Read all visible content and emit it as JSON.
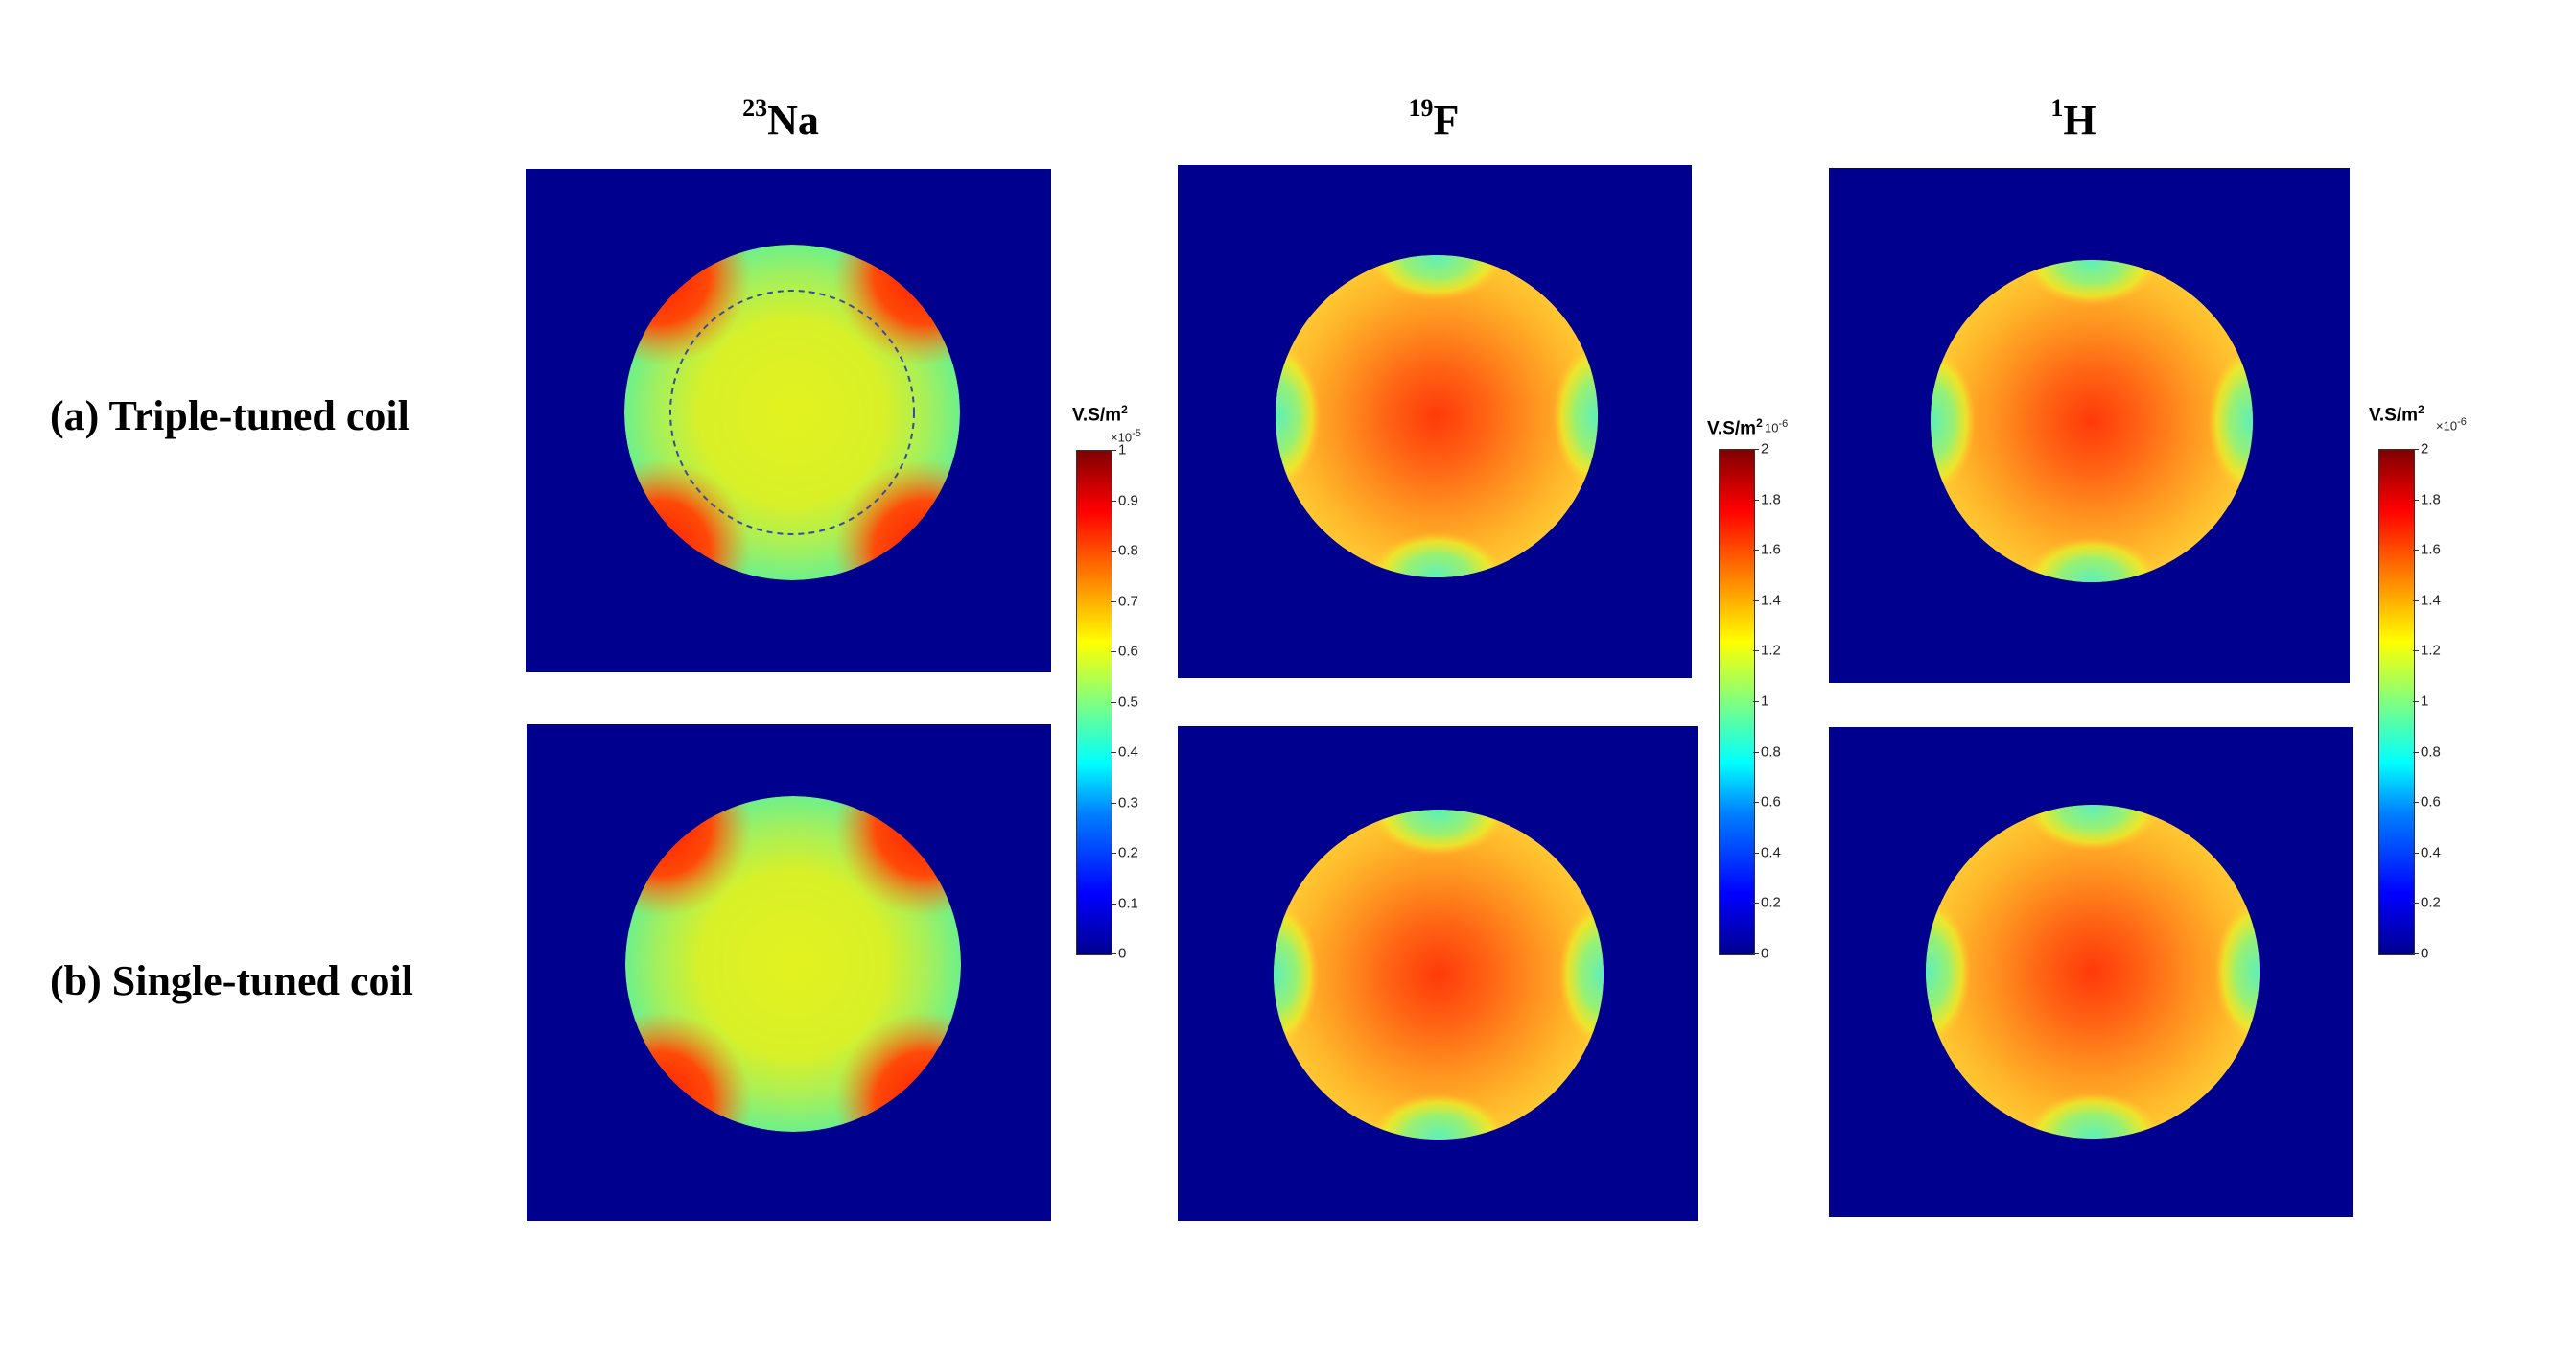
{
  "columns": [
    {
      "sup": "23",
      "label": "Na"
    },
    {
      "sup": "19",
      "label": "F"
    },
    {
      "sup": "1",
      "label": "H"
    }
  ],
  "rows": [
    {
      "label": "(a) Triple-tuned coil"
    },
    {
      "label": "(b) Single-tuned coil"
    }
  ],
  "colorbars": [
    {
      "unit": "V.S/m",
      "unit_sup": "2",
      "exponent_base": "×10",
      "exponent": "-5",
      "ticks": [
        "0",
        "0.1",
        "0.2",
        "0.3",
        "0.4",
        "0.5",
        "0.6",
        "0.7",
        "0.8",
        "0.9",
        "1"
      ]
    },
    {
      "unit": "V.S/m",
      "unit_sup": "2",
      "exponent_base": "10",
      "exponent": "-6",
      "ticks": [
        "0",
        "0.2",
        "0.4",
        "0.6",
        "0.8",
        "1",
        "1.2",
        "1.4",
        "1.6",
        "1.8",
        "2"
      ]
    },
    {
      "unit": "V.S/m",
      "unit_sup": "2",
      "exponent_base": "×10",
      "exponent": "-6",
      "ticks": [
        "0",
        "0.2",
        "0.4",
        "0.6",
        "0.8",
        "1",
        "1.2",
        "1.4",
        "1.6",
        "1.8",
        "2"
      ]
    }
  ],
  "colors": {
    "background": "#00008f"
  }
}
